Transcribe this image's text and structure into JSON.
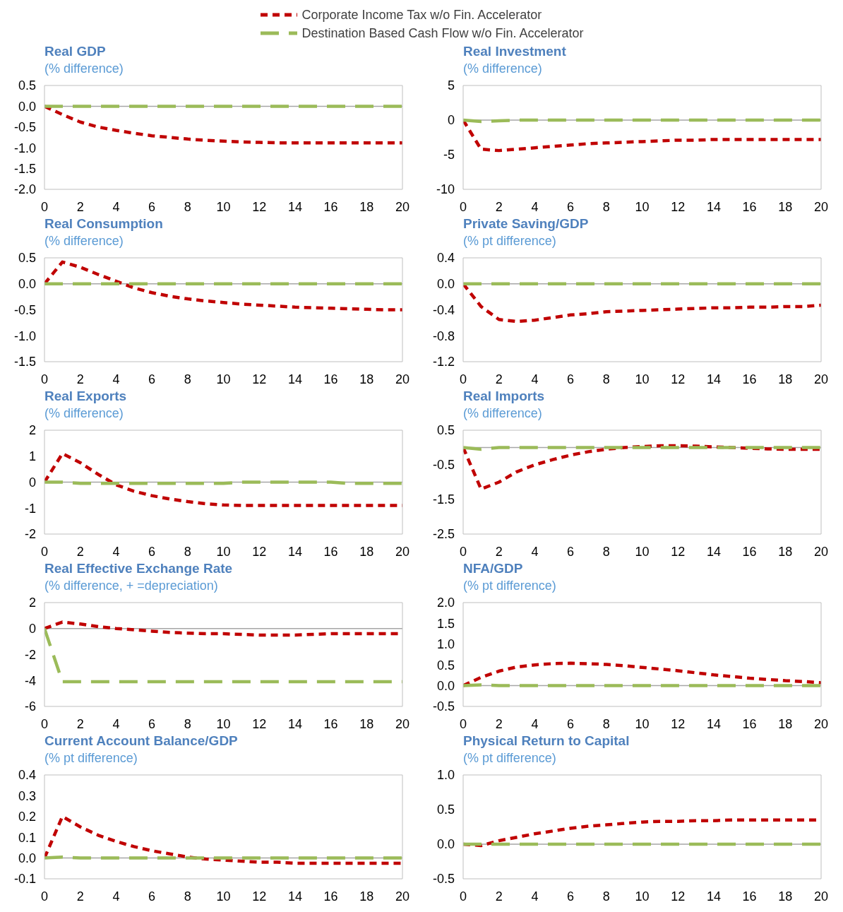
{
  "chart_data": [
    {
      "type": "line",
      "title": "Real GDP",
      "subtitle": "(% difference)",
      "x": [
        0,
        1,
        2,
        3,
        4,
        5,
        6,
        7,
        8,
        9,
        10,
        11,
        12,
        13,
        14,
        15,
        16,
        17,
        18,
        19,
        20
      ],
      "xlim": [
        0,
        20
      ],
      "xticks": [
        0,
        2,
        4,
        6,
        8,
        10,
        12,
        14,
        16,
        18,
        20
      ],
      "ylim": [
        -2,
        0.5
      ],
      "yticks": [
        {
          "value": -2,
          "label": "-2.0"
        },
        -1.5,
        {
          "value": -1,
          "label": "-1.0"
        },
        -0.5,
        {
          "value": 0,
          "label": "0.0"
        },
        0.5
      ],
      "grid": false,
      "legend": "top",
      "line_style": "dashed",
      "marker": "none",
      "ref_lines": [
        {
          "axis": "y",
          "value": 0,
          "color": "#a6a6a6"
        }
      ],
      "series": [
        {
          "name": "Corporate Income Tax w/o Fin. Accelerator",
          "color": "#c00000",
          "values": [
            0,
            -0.2,
            -0.38,
            -0.5,
            -0.58,
            -0.65,
            -0.71,
            -0.75,
            -0.79,
            -0.82,
            -0.84,
            -0.86,
            -0.87,
            -0.88,
            -0.88,
            -0.88,
            -0.88,
            -0.88,
            -0.88,
            -0.88,
            -0.88
          ]
        },
        {
          "name": "Destination Based Cash Flow w/o Fin. Accelerator",
          "color": "#9bbb59",
          "values": [
            0,
            0,
            0,
            0,
            0,
            0,
            0,
            0,
            0,
            0,
            0,
            0,
            0,
            0,
            0,
            0,
            0,
            0,
            0,
            0,
            0
          ]
        }
      ]
    },
    {
      "type": "line",
      "title": "Real Investment",
      "subtitle": "(% difference)",
      "x": [
        0,
        1,
        2,
        3,
        4,
        5,
        6,
        7,
        8,
        9,
        10,
        11,
        12,
        13,
        14,
        15,
        16,
        17,
        18,
        19,
        20
      ],
      "xlim": [
        0,
        20
      ],
      "xticks": [
        0,
        2,
        4,
        6,
        8,
        10,
        12,
        14,
        16,
        18,
        20
      ],
      "ylim": [
        -10,
        5
      ],
      "yticks": [
        -10,
        -5,
        0,
        5
      ],
      "grid": false,
      "line_style": "dashed",
      "marker": "none",
      "ref_lines": [
        {
          "axis": "y",
          "value": 0,
          "color": "#a6a6a6"
        }
      ],
      "series": [
        {
          "color": "#c00000",
          "values": [
            0,
            -4.2,
            -4.4,
            -4.2,
            -4.0,
            -3.8,
            -3.6,
            -3.4,
            -3.3,
            -3.2,
            -3.1,
            -3.0,
            -2.9,
            -2.9,
            -2.8,
            -2.8,
            -2.8,
            -2.8,
            -2.8,
            -2.8,
            -2.8
          ]
        },
        {
          "color": "#9bbb59",
          "values": [
            0,
            -0.2,
            -0.1,
            0,
            0,
            0,
            0,
            0,
            0,
            0,
            0,
            0,
            0,
            0,
            0,
            0,
            0,
            0,
            0,
            0,
            0
          ]
        }
      ]
    },
    {
      "type": "line",
      "title": "Real Consumption",
      "subtitle": "(% difference)",
      "x": [
        0,
        1,
        2,
        3,
        4,
        5,
        6,
        7,
        8,
        9,
        10,
        11,
        12,
        13,
        14,
        15,
        16,
        17,
        18,
        19,
        20
      ],
      "xlim": [
        0,
        20
      ],
      "xticks": [
        0,
        2,
        4,
        6,
        8,
        10,
        12,
        14,
        16,
        18,
        20
      ],
      "ylim": [
        -1.5,
        0.5
      ],
      "yticks": [
        -1.5,
        {
          "value": -1,
          "label": "-1.0"
        },
        -0.5,
        {
          "value": 0,
          "label": "0.0"
        },
        0.5
      ],
      "grid": false,
      "line_style": "dashed",
      "marker": "none",
      "ref_lines": [
        {
          "axis": "y",
          "value": 0,
          "color": "#a6a6a6"
        }
      ],
      "series": [
        {
          "color": "#c00000",
          "values": [
            0,
            0.42,
            0.32,
            0.18,
            0.05,
            -0.08,
            -0.17,
            -0.24,
            -0.29,
            -0.33,
            -0.36,
            -0.39,
            -0.41,
            -0.43,
            -0.45,
            -0.46,
            -0.47,
            -0.48,
            -0.49,
            -0.5,
            -0.5
          ]
        },
        {
          "color": "#9bbb59",
          "values": [
            0,
            0,
            0,
            0,
            0,
            0,
            0,
            0,
            0,
            0,
            0,
            0,
            0,
            0,
            0,
            0,
            0,
            0,
            0,
            0,
            0
          ]
        }
      ]
    },
    {
      "type": "line",
      "title": "Private Saving/GDP",
      "subtitle": "(% pt difference)",
      "x": [
        0,
        1,
        2,
        3,
        4,
        5,
        6,
        7,
        8,
        9,
        10,
        11,
        12,
        13,
        14,
        15,
        16,
        17,
        18,
        19,
        20
      ],
      "xlim": [
        0,
        20
      ],
      "xticks": [
        0,
        2,
        4,
        6,
        8,
        10,
        12,
        14,
        16,
        18,
        20
      ],
      "ylim": [
        -1.2,
        0.4
      ],
      "yticks": [
        -1.2,
        -0.8,
        -0.4,
        {
          "value": 0,
          "label": "0.0"
        },
        0.4
      ],
      "grid": false,
      "line_style": "dashed",
      "marker": "none",
      "ref_lines": [
        {
          "axis": "y",
          "value": 0,
          "color": "#a6a6a6"
        }
      ],
      "series": [
        {
          "color": "#c00000",
          "values": [
            0,
            -0.35,
            -0.55,
            -0.58,
            -0.56,
            -0.52,
            -0.48,
            -0.46,
            -0.43,
            -0.42,
            -0.41,
            -0.4,
            -0.39,
            -0.38,
            -0.37,
            -0.37,
            -0.36,
            -0.36,
            -0.35,
            -0.35,
            -0.33
          ]
        },
        {
          "color": "#9bbb59",
          "values": [
            0,
            0,
            0,
            0,
            0,
            0,
            0,
            0,
            0,
            0,
            0,
            0,
            0,
            0,
            0,
            0,
            0,
            0,
            0,
            0,
            0
          ]
        }
      ]
    },
    {
      "type": "line",
      "title": "Real Exports",
      "subtitle": "(% difference)",
      "x": [
        0,
        1,
        2,
        3,
        4,
        5,
        6,
        7,
        8,
        9,
        10,
        11,
        12,
        13,
        14,
        15,
        16,
        17,
        18,
        19,
        20
      ],
      "xlim": [
        0,
        20
      ],
      "xticks": [
        0,
        2,
        4,
        6,
        8,
        10,
        12,
        14,
        16,
        18,
        20
      ],
      "ylim": [
        -2,
        2
      ],
      "yticks": [
        -2,
        -1,
        0,
        1,
        2
      ],
      "grid": false,
      "line_style": "dashed",
      "marker": "none",
      "ref_lines": [
        {
          "axis": "y",
          "value": 0,
          "color": "#a6a6a6"
        }
      ],
      "series": [
        {
          "color": "#c00000",
          "values": [
            0,
            1.1,
            0.75,
            0.3,
            -0.1,
            -0.35,
            -0.52,
            -0.65,
            -0.75,
            -0.83,
            -0.88,
            -0.9,
            -0.9,
            -0.9,
            -0.9,
            -0.9,
            -0.9,
            -0.9,
            -0.9,
            -0.9,
            -0.9
          ]
        },
        {
          "color": "#9bbb59",
          "values": [
            0,
            0,
            -0.05,
            -0.05,
            -0.05,
            -0.05,
            -0.05,
            -0.05,
            -0.05,
            -0.05,
            -0.05,
            0,
            0,
            0,
            0,
            0,
            0,
            -0.05,
            -0.05,
            -0.05,
            -0.05
          ]
        }
      ]
    },
    {
      "type": "line",
      "title": "Real Imports",
      "subtitle": "(% difference)",
      "x": [
        0,
        1,
        2,
        3,
        4,
        5,
        6,
        7,
        8,
        9,
        10,
        11,
        12,
        13,
        14,
        15,
        16,
        17,
        18,
        19,
        20
      ],
      "xlim": [
        0,
        20
      ],
      "xticks": [
        0,
        2,
        4,
        6,
        8,
        10,
        12,
        14,
        16,
        18,
        20
      ],
      "ylim": [
        -2.5,
        0.5
      ],
      "yticks": [
        -2.5,
        -1.5,
        -0.5,
        0.5
      ],
      "grid": false,
      "line_style": "dashed",
      "marker": "none",
      "ref_lines": [
        {
          "axis": "y",
          "value": 0,
          "color": "#a6a6a6"
        }
      ],
      "series": [
        {
          "color": "#c00000",
          "values": [
            0,
            -1.2,
            -1.0,
            -0.7,
            -0.5,
            -0.35,
            -0.22,
            -0.12,
            -0.05,
            0,
            0.03,
            0.05,
            0.05,
            0.04,
            0.02,
            0,
            -0.02,
            -0.04,
            -0.05,
            -0.05,
            -0.05
          ]
        },
        {
          "color": "#9bbb59",
          "values": [
            0,
            -0.05,
            0,
            0,
            0,
            0,
            0,
            0,
            0,
            0,
            0,
            0,
            0,
            0,
            0,
            0,
            0,
            0,
            0,
            0,
            0
          ]
        }
      ]
    },
    {
      "type": "line",
      "title": "Real Effective Exchange Rate",
      "subtitle": "(% difference, + =depreciation)",
      "x": [
        0,
        1,
        2,
        3,
        4,
        5,
        6,
        7,
        8,
        9,
        10,
        11,
        12,
        13,
        14,
        15,
        16,
        17,
        18,
        19,
        20
      ],
      "xlim": [
        0,
        20
      ],
      "xticks": [
        0,
        2,
        4,
        6,
        8,
        10,
        12,
        14,
        16,
        18,
        20
      ],
      "ylim": [
        -6,
        2
      ],
      "yticks": [
        -6,
        -4,
        -2,
        0,
        2
      ],
      "grid": false,
      "line_style": "dashed",
      "marker": "none",
      "ref_lines": [
        {
          "axis": "y",
          "value": 0,
          "color": "#a6a6a6"
        }
      ],
      "series": [
        {
          "color": "#c00000",
          "values": [
            0,
            0.5,
            0.35,
            0.15,
            0,
            -0.1,
            -0.2,
            -0.3,
            -0.35,
            -0.4,
            -0.4,
            -0.45,
            -0.5,
            -0.5,
            -0.5,
            -0.45,
            -0.4,
            -0.4,
            -0.4,
            -0.4,
            -0.4
          ]
        },
        {
          "color": "#9bbb59",
          "values": [
            0,
            -4.1,
            -4.1,
            -4.1,
            -4.1,
            -4.1,
            -4.1,
            -4.1,
            -4.1,
            -4.1,
            -4.1,
            -4.1,
            -4.1,
            -4.1,
            -4.1,
            -4.1,
            -4.1,
            -4.1,
            -4.1,
            -4.1,
            -4.1
          ]
        }
      ]
    },
    {
      "type": "line",
      "title": "NFA/GDP",
      "subtitle": "(% pt difference)",
      "x": [
        0,
        1,
        2,
        3,
        4,
        5,
        6,
        7,
        8,
        9,
        10,
        11,
        12,
        13,
        14,
        15,
        16,
        17,
        18,
        19,
        20
      ],
      "xlim": [
        0,
        20
      ],
      "xticks": [
        0,
        2,
        4,
        6,
        8,
        10,
        12,
        14,
        16,
        18,
        20
      ],
      "ylim": [
        -0.5,
        2
      ],
      "yticks": [
        -0.5,
        {
          "value": 0,
          "label": "0.0"
        },
        0.5,
        {
          "value": 1,
          "label": "1.0"
        },
        1.5,
        {
          "value": 2,
          "label": "2.0"
        }
      ],
      "grid": false,
      "line_style": "dashed",
      "marker": "none",
      "ref_lines": [
        {
          "axis": "y",
          "value": 0,
          "color": "#a6a6a6"
        }
      ],
      "series": [
        {
          "color": "#c00000",
          "values": [
            0,
            0.2,
            0.35,
            0.45,
            0.5,
            0.53,
            0.54,
            0.53,
            0.51,
            0.48,
            0.44,
            0.4,
            0.36,
            0.31,
            0.26,
            0.22,
            0.18,
            0.15,
            0.12,
            0.1,
            0.07
          ]
        },
        {
          "color": "#9bbb59",
          "values": [
            0,
            0.02,
            0,
            0,
            0,
            0,
            0,
            0,
            0,
            0,
            0,
            0,
            0,
            0,
            0,
            0,
            0,
            0,
            0,
            0,
            0
          ]
        }
      ]
    },
    {
      "type": "line",
      "title": "Current Account Balance/GDP",
      "subtitle": "(% pt difference)",
      "x": [
        0,
        1,
        2,
        3,
        4,
        5,
        6,
        7,
        8,
        9,
        10,
        11,
        12,
        13,
        14,
        15,
        16,
        17,
        18,
        19,
        20
      ],
      "xlim": [
        0,
        20
      ],
      "xticks": [
        0,
        2,
        4,
        6,
        8,
        10,
        12,
        14,
        16,
        18,
        20
      ],
      "ylim": [
        -0.1,
        0.4
      ],
      "yticks": [
        -0.1,
        {
          "value": 0,
          "label": "0.0"
        },
        0.1,
        0.2,
        0.3,
        0.4
      ],
      "grid": false,
      "line_style": "dashed",
      "marker": "none",
      "ref_lines": [
        {
          "axis": "y",
          "value": 0,
          "color": "#a6a6a6"
        }
      ],
      "series": [
        {
          "color": "#c00000",
          "values": [
            0,
            0.2,
            0.15,
            0.11,
            0.08,
            0.055,
            0.035,
            0.02,
            0.005,
            -0.005,
            -0.01,
            -0.015,
            -0.02,
            -0.02,
            -0.025,
            -0.025,
            -0.025,
            -0.025,
            -0.025,
            -0.025,
            -0.025
          ]
        },
        {
          "color": "#9bbb59",
          "values": [
            0,
            0.005,
            0,
            0,
            0,
            0,
            0,
            0,
            0,
            0,
            0,
            0,
            0,
            0,
            0,
            0,
            0,
            0,
            0,
            0,
            0
          ]
        }
      ]
    },
    {
      "type": "line",
      "title": "Physical Return to Capital",
      "subtitle": "(% pt difference)",
      "x": [
        0,
        1,
        2,
        3,
        4,
        5,
        6,
        7,
        8,
        9,
        10,
        11,
        12,
        13,
        14,
        15,
        16,
        17,
        18,
        19,
        20
      ],
      "xlim": [
        0,
        20
      ],
      "xticks": [
        0,
        2,
        4,
        6,
        8,
        10,
        12,
        14,
        16,
        18,
        20
      ],
      "ylim": [
        -0.5,
        1
      ],
      "yticks": [
        -0.5,
        {
          "value": 0,
          "label": "0.0"
        },
        0.5,
        {
          "value": 1,
          "label": "1.0"
        }
      ],
      "grid": false,
      "line_style": "dashed",
      "marker": "none",
      "ref_lines": [
        {
          "axis": "y",
          "value": 0,
          "color": "#a6a6a6"
        }
      ],
      "series": [
        {
          "color": "#c00000",
          "values": [
            0,
            -0.02,
            0.05,
            0.1,
            0.15,
            0.19,
            0.23,
            0.26,
            0.28,
            0.3,
            0.32,
            0.33,
            0.33,
            0.34,
            0.34,
            0.35,
            0.35,
            0.35,
            0.35,
            0.35,
            0.35
          ]
        },
        {
          "color": "#9bbb59",
          "values": [
            0,
            0,
            0,
            0,
            0,
            0,
            0,
            0,
            0,
            0,
            0,
            0,
            0,
            0,
            0,
            0,
            0,
            0,
            0,
            0,
            0
          ]
        }
      ]
    }
  ]
}
